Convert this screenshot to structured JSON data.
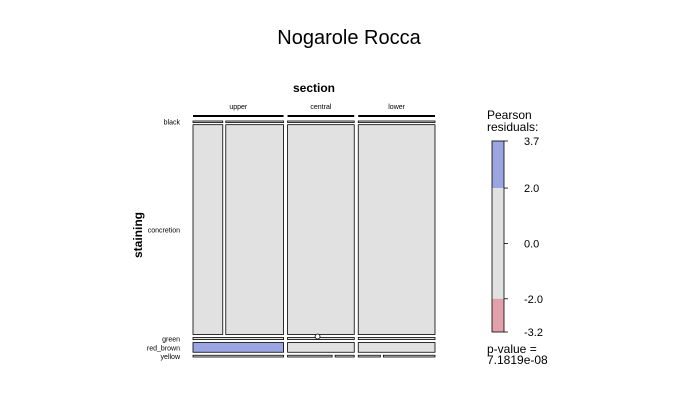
{
  "chart_data": {
    "type": "mosaic",
    "title": "Nogarole Rocca",
    "column_variable": "section",
    "row_variable": "staining",
    "columns": [
      "upper",
      "central",
      "lower"
    ],
    "rows": [
      "black",
      "concretion",
      "green",
      "red_brown",
      "yellow"
    ],
    "column_shares": [
      0.387,
      0.285,
      0.328
    ],
    "cell_shares": [
      [
        0.003,
        0.003,
        0.003
      ],
      [
        0.868,
        0.948,
        0.948
      ],
      [
        0.02,
        0.004,
        0.003
      ],
      [
        0.05,
        0.039,
        0.039
      ],
      [
        0.01,
        0.006,
        0.007
      ]
    ],
    "cell_splits": [
      [
        [
          0.34,
          0.66
        ],
        [
          1.0
        ],
        [
          1.0
        ]
      ],
      [
        [
          0.34,
          0.66
        ],
        [
          1.0
        ],
        [
          1.0
        ]
      ],
      [
        [
          1.0
        ],
        [
          1.0
        ],
        [
          1.0
        ]
      ],
      [
        [
          1.0
        ],
        [
          1.0
        ],
        [
          1.0
        ]
      ],
      [
        [
          1.0
        ],
        [
          0.7,
          0.3
        ],
        [
          0.3,
          0.7
        ]
      ]
    ],
    "residual_sign": [
      [
        0,
        0,
        0
      ],
      [
        0,
        0,
        0
      ],
      [
        0,
        0,
        0
      ],
      [
        1,
        0,
        0
      ],
      [
        0,
        0,
        0
      ]
    ],
    "legend": {
      "title_lines": [
        "Pearson",
        "residuals:"
      ],
      "max": 3.7,
      "min": -3.2,
      "ticks": [
        "3.7",
        "2.0",
        "0.0",
        "-2.0",
        "-3.2"
      ],
      "tick_values": [
        3.7,
        2.0,
        0.0,
        -2.0,
        -3.2
      ],
      "thresholds": [
        2.0,
        -2.0
      ],
      "p_value_lines": [
        "p-value =",
        "7.1819e-08"
      ]
    },
    "colors": {
      "positive": "#9ba5e2",
      "neutral": "#e1e1e1",
      "negative": "#e2a0aa",
      "outline": "#000000"
    }
  }
}
